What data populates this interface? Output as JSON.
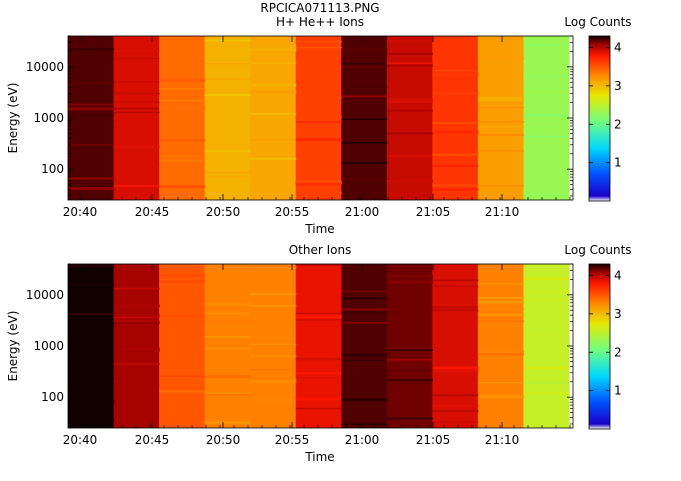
{
  "figure": {
    "title": "RPCICA071113.PNG"
  },
  "chart_data": [
    {
      "type": "heatmap",
      "title": "H+ He++ Ions",
      "xlabel": "Time",
      "ylabel": "Energy (eV)",
      "y_scale": "log",
      "x_tick_labels": [
        "20:40",
        "20:45",
        "20:50",
        "20:55",
        "21:00",
        "21:05",
        "21:10"
      ],
      "y_tick_labels": [
        "100",
        "1000",
        "10000"
      ],
      "ylim": [
        25,
        40000
      ],
      "colorbar": {
        "label": "Log Counts",
        "range": [
          0,
          4.3
        ],
        "tick_labels": [
          "1",
          "2",
          "3",
          "4"
        ]
      },
      "column_log_counts": [
        4.2,
        3.9,
        3.4,
        3.05,
        3.1,
        3.6,
        4.2,
        3.95,
        3.65,
        3.15,
        2.3
      ],
      "grid": false
    },
    {
      "type": "heatmap",
      "title": "Other Ions",
      "xlabel": "Time",
      "ylabel": "Energy (eV)",
      "y_scale": "log",
      "x_tick_labels": [
        "20:40",
        "20:45",
        "20:50",
        "20:55",
        "21:00",
        "21:05",
        "21:10"
      ],
      "y_tick_labels": [
        "100",
        "1000",
        "10000"
      ],
      "ylim": [
        25,
        40000
      ],
      "colorbar": {
        "label": "Log Counts",
        "range": [
          0,
          4.3
        ],
        "tick_labels": [
          "1",
          "2",
          "3",
          "4"
        ]
      },
      "column_log_counts": [
        4.35,
        4.05,
        3.5,
        3.3,
        3.3,
        3.85,
        4.2,
        4.15,
        3.9,
        3.3,
        2.55
      ],
      "grid": false
    }
  ]
}
